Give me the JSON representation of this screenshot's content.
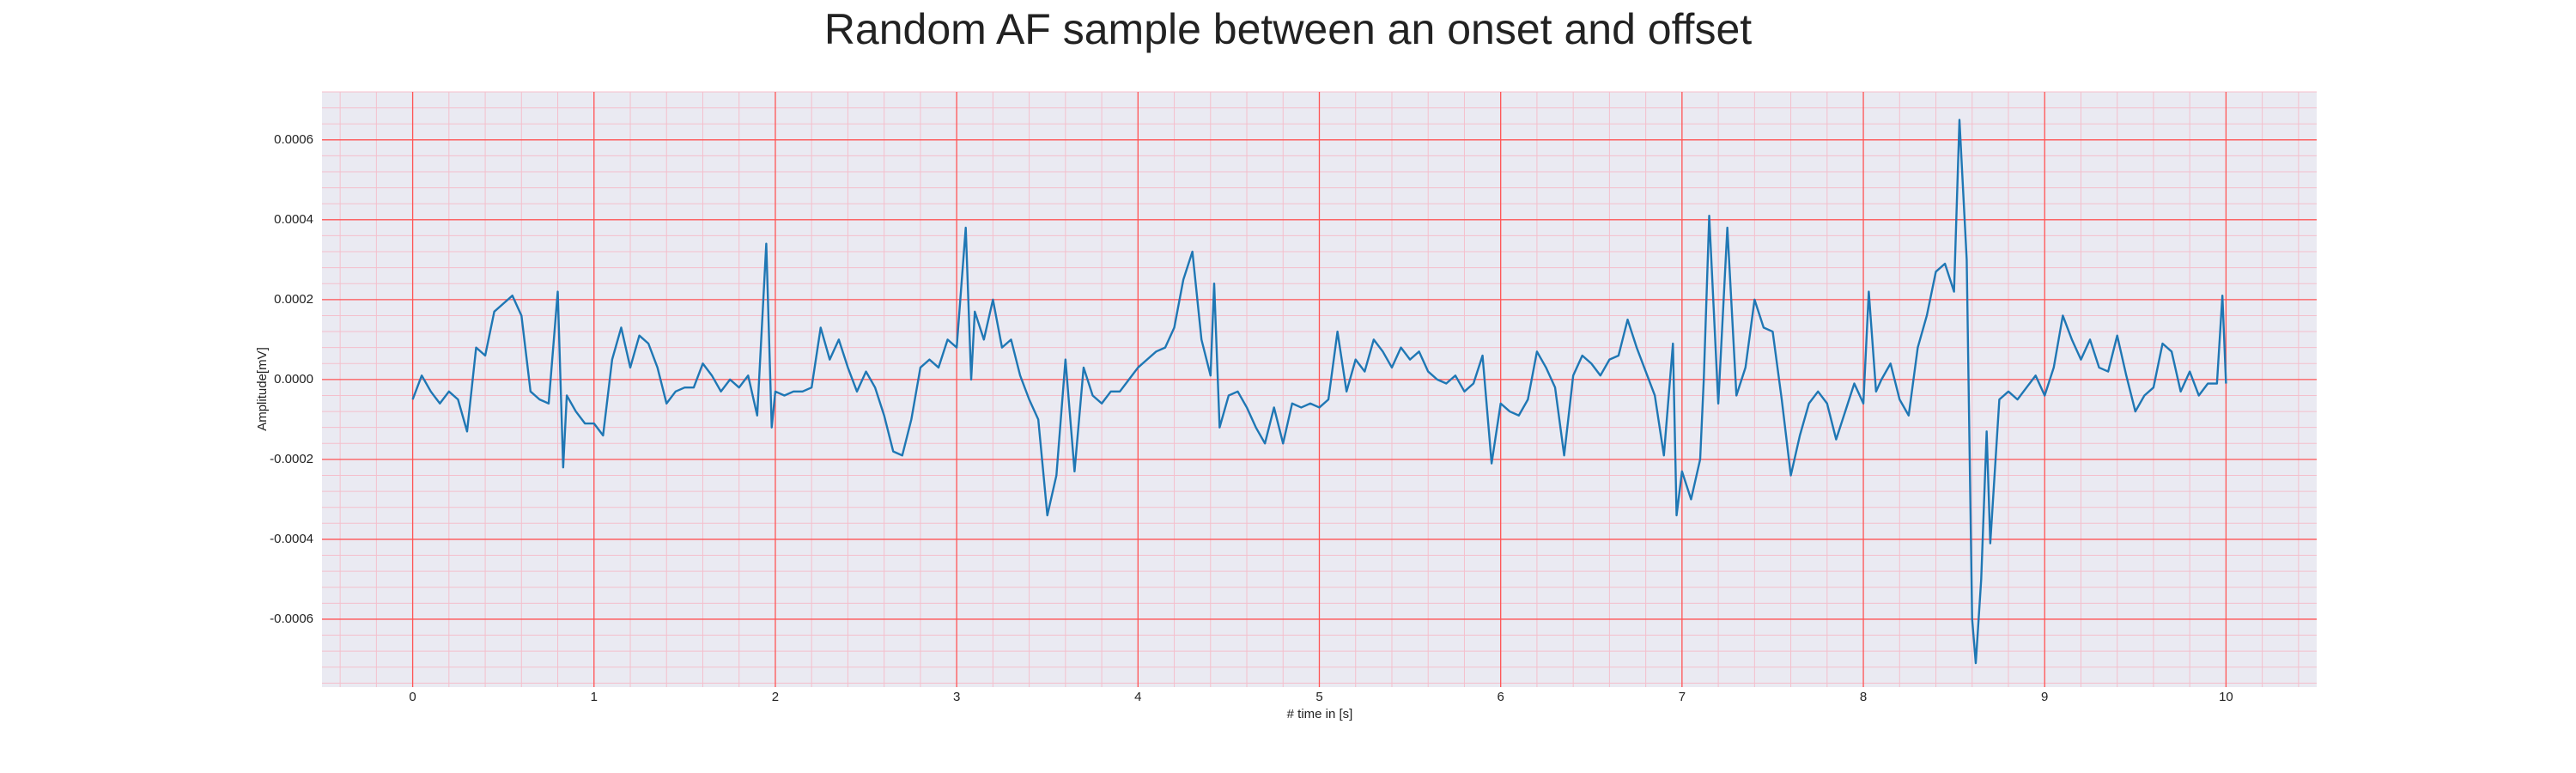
{
  "chart_data": {
    "type": "line",
    "title": "Random AF sample between an onset and offset",
    "x_label": "# time in [s]",
    "y_label": "Amplitude[mV]",
    "color": "#1f77b4",
    "grid": true,
    "minor_grid": true,
    "grid_color": "#ff5555",
    "minor_grid_color": "#f4bfcc",
    "background": "#eaeaf2",
    "xlim": [
      -0.5,
      10.5
    ],
    "ylim": [
      -0.00077,
      0.00072
    ],
    "xticks": [
      0,
      1,
      2,
      3,
      4,
      5,
      6,
      7,
      8,
      9,
      10
    ],
    "yticks": [
      0.0006,
      0.0004,
      0.0002,
      {
        "value": 0,
        "label": "0.0000"
      },
      -0.0002,
      -0.0004,
      -0.0006
    ],
    "x": [
      0,
      0.05,
      0.1,
      0.15,
      0.2,
      0.25,
      0.3,
      0.35,
      0.4,
      0.45,
      0.5,
      0.55,
      0.6,
      0.65,
      0.7,
      0.75,
      0.8,
      0.83,
      0.85,
      0.9,
      0.95,
      1,
      1.05,
      1.1,
      1.15,
      1.2,
      1.25,
      1.3,
      1.35,
      1.4,
      1.45,
      1.5,
      1.55,
      1.6,
      1.65,
      1.7,
      1.75,
      1.8,
      1.85,
      1.9,
      1.95,
      1.98,
      2,
      2.05,
      2.1,
      2.15,
      2.2,
      2.25,
      2.3,
      2.35,
      2.4,
      2.45,
      2.5,
      2.55,
      2.6,
      2.65,
      2.7,
      2.75,
      2.8,
      2.85,
      2.9,
      2.95,
      3,
      3.05,
      3.08,
      3.1,
      3.15,
      3.2,
      3.25,
      3.3,
      3.35,
      3.4,
      3.45,
      3.5,
      3.55,
      3.6,
      3.65,
      3.7,
      3.75,
      3.8,
      3.85,
      3.9,
      3.95,
      4,
      4.05,
      4.1,
      4.15,
      4.2,
      4.25,
      4.3,
      4.35,
      4.4,
      4.42,
      4.45,
      4.5,
      4.55,
      4.6,
      4.65,
      4.7,
      4.75,
      4.8,
      4.85,
      4.9,
      4.95,
      5,
      5.05,
      5.1,
      5.15,
      5.2,
      5.25,
      5.3,
      5.35,
      5.4,
      5.45,
      5.5,
      5.55,
      5.6,
      5.65,
      5.7,
      5.75,
      5.8,
      5.85,
      5.9,
      5.95,
      6,
      6.05,
      6.1,
      6.15,
      6.2,
      6.25,
      6.3,
      6.35,
      6.4,
      6.45,
      6.5,
      6.55,
      6.6,
      6.65,
      6.7,
      6.75,
      6.8,
      6.85,
      6.9,
      6.95,
      6.97,
      7,
      7.05,
      7.1,
      7.12,
      7.15,
      7.2,
      7.25,
      7.3,
      7.35,
      7.4,
      7.45,
      7.5,
      7.55,
      7.6,
      7.65,
      7.7,
      7.75,
      7.8,
      7.85,
      7.9,
      7.95,
      8,
      8.03,
      8.07,
      8.1,
      8.15,
      8.2,
      8.25,
      8.3,
      8.35,
      8.4,
      8.45,
      8.5,
      8.53,
      8.57,
      8.6,
      8.62,
      8.65,
      8.68,
      8.7,
      8.75,
      8.8,
      8.85,
      8.9,
      8.95,
      9,
      9.05,
      9.1,
      9.15,
      9.2,
      9.25,
      9.3,
      9.35,
      9.4,
      9.45,
      9.5,
      9.55,
      9.6,
      9.65,
      9.7,
      9.75,
      9.8,
      9.85,
      9.9,
      9.95,
      9.98,
      10
    ],
    "values": [
      -5e-05,
      1e-05,
      -3e-05,
      -6e-05,
      -3e-05,
      -5e-05,
      -0.00013,
      8e-05,
      6e-05,
      0.00017,
      0.00019,
      0.00021,
      0.00016,
      -3e-05,
      -5e-05,
      -6e-05,
      0.00022,
      -0.00022,
      -4e-05,
      -8e-05,
      -0.00011,
      -0.00011,
      -0.00014,
      5e-05,
      0.00013,
      3e-05,
      0.00011,
      9e-05,
      3e-05,
      -6e-05,
      -3e-05,
      -2e-05,
      -2e-05,
      4e-05,
      1e-05,
      -3e-05,
      0,
      -2e-05,
      1e-05,
      -9e-05,
      0.00034,
      -0.00012,
      -3e-05,
      -4e-05,
      -3e-05,
      -3e-05,
      -2e-05,
      0.00013,
      5e-05,
      0.0001,
      3e-05,
      -3e-05,
      2e-05,
      -2e-05,
      -9e-05,
      -0.00018,
      -0.00019,
      -0.0001,
      3e-05,
      5e-05,
      3e-05,
      0.0001,
      8e-05,
      0.00038,
      0,
      0.00017,
      0.0001,
      0.0002,
      8e-05,
      0.0001,
      1e-05,
      -5e-05,
      -0.0001,
      -0.00034,
      -0.00024,
      5e-05,
      -0.00023,
      3e-05,
      -4e-05,
      -6e-05,
      -3e-05,
      -3e-05,
      0,
      3e-05,
      5e-05,
      7e-05,
      8e-05,
      0.00013,
      0.00025,
      0.00032,
      0.0001,
      1e-05,
      0.00024,
      -0.00012,
      -4e-05,
      -3e-05,
      -7e-05,
      -0.00012,
      -0.00016,
      -7e-05,
      -0.00016,
      -6e-05,
      -7e-05,
      -6e-05,
      -7e-05,
      -5e-05,
      0.00012,
      -3e-05,
      5e-05,
      2e-05,
      0.0001,
      7e-05,
      3e-05,
      8e-05,
      5e-05,
      7e-05,
      2e-05,
      0,
      -1e-05,
      1e-05,
      -3e-05,
      -1e-05,
      6e-05,
      -0.00021,
      -6e-05,
      -8e-05,
      -9e-05,
      -5e-05,
      7e-05,
      3e-05,
      -2e-05,
      -0.00019,
      1e-05,
      6e-05,
      4e-05,
      1e-05,
      5e-05,
      6e-05,
      0.00015,
      8e-05,
      2e-05,
      -4e-05,
      -0.00019,
      9e-05,
      -0.00034,
      -0.00023,
      -0.0003,
      -0.0002,
      0,
      0.00041,
      -6e-05,
      0.00038,
      -4e-05,
      3e-05,
      0.0002,
      0.00013,
      0.00012,
      -5e-05,
      -0.00024,
      -0.00014,
      -6e-05,
      -3e-05,
      -6e-05,
      -0.00015,
      -8e-05,
      -1e-05,
      -6e-05,
      0.00022,
      -3e-05,
      0,
      4e-05,
      -5e-05,
      -9e-05,
      8e-05,
      0.00016,
      0.00027,
      0.00029,
      0.00022,
      0.00065,
      0.0003,
      -0.0006,
      -0.00071,
      -0.0005,
      -0.00013,
      -0.00041,
      -5e-05,
      -3e-05,
      -5e-05,
      -2e-05,
      1e-05,
      -4e-05,
      3e-05,
      0.00016,
      0.0001,
      5e-05,
      0.0001,
      3e-05,
      2e-05,
      0.00011,
      1e-05,
      -8e-05,
      -4e-05,
      -2e-05,
      9e-05,
      7e-05,
      -3e-05,
      2e-05,
      -4e-05,
      -1e-05,
      -1e-05,
      0.00021,
      -1e-05
    ]
  }
}
